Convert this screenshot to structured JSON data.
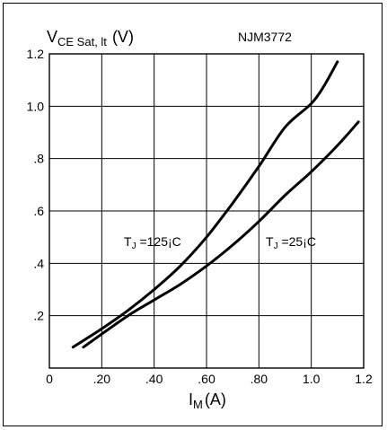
{
  "chart_data": {
    "type": "line",
    "title": "NJM3772",
    "ylabel": {
      "main": "V",
      "sub": "CE Sat, lt",
      "unit": "(V)"
    },
    "xlabel": {
      "main": "I",
      "sub": "M",
      "unit": "(A)"
    },
    "xlim": [
      0,
      1.2
    ],
    "ylim": [
      0,
      1.2
    ],
    "x_ticks": [
      {
        "value": 0,
        "label": "0"
      },
      {
        "value": 0.2,
        "label": ".20"
      },
      {
        "value": 0.4,
        "label": ".40"
      },
      {
        "value": 0.6,
        "label": ".60"
      },
      {
        "value": 0.8,
        "label": ".80"
      },
      {
        "value": 1.0,
        "label": "1.0"
      },
      {
        "value": 1.2,
        "label": "1.2"
      }
    ],
    "y_ticks": [
      {
        "value": 0.2,
        "label": ".2"
      },
      {
        "value": 0.4,
        "label": ".4"
      },
      {
        "value": 0.6,
        "label": ".6"
      },
      {
        "value": 0.8,
        "label": ".8"
      },
      {
        "value": 1.0,
        "label": "1.0"
      },
      {
        "value": 1.2,
        "label": "1.2"
      }
    ],
    "grid": true,
    "series": [
      {
        "label_main": "T",
        "label_sub": "J",
        "label_rest": " =125¡C",
        "points": [
          [
            0.09,
            0.08
          ],
          [
            0.2,
            0.15
          ],
          [
            0.3,
            0.22
          ],
          [
            0.4,
            0.3
          ],
          [
            0.5,
            0.39
          ],
          [
            0.6,
            0.5
          ],
          [
            0.7,
            0.63
          ],
          [
            0.8,
            0.77
          ],
          [
            0.9,
            0.92
          ],
          [
            1.0,
            1.01
          ],
          [
            1.05,
            1.08
          ],
          [
            1.1,
            1.17
          ]
        ]
      },
      {
        "label_main": "T",
        "label_sub": "J",
        "label_rest": " =25¡C",
        "points": [
          [
            0.13,
            0.08
          ],
          [
            0.2,
            0.13
          ],
          [
            0.3,
            0.2
          ],
          [
            0.4,
            0.26
          ],
          [
            0.5,
            0.32
          ],
          [
            0.6,
            0.39
          ],
          [
            0.7,
            0.47
          ],
          [
            0.8,
            0.56
          ],
          [
            0.9,
            0.66
          ],
          [
            1.0,
            0.75
          ],
          [
            1.1,
            0.85
          ],
          [
            1.18,
            0.94
          ]
        ]
      }
    ]
  }
}
